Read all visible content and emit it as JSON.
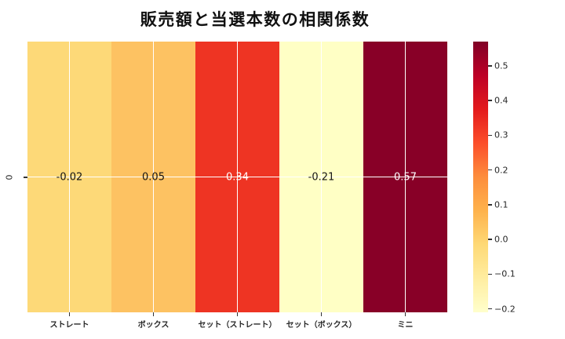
{
  "chart_data": {
    "type": "heatmap",
    "title": "販売額と当選本数の相関係数",
    "categories": [
      "ストレート",
      "ボックス",
      "セット（ストレート）",
      "セット（ボックス）",
      "ミニ"
    ],
    "row_labels": [
      "0"
    ],
    "values": [
      [
        -0.02,
        0.05,
        0.34,
        -0.21,
        0.57
      ]
    ],
    "value_labels": [
      [
        "-0.02",
        "0.05",
        "0.34",
        "-0.21",
        "0.57"
      ]
    ],
    "cell_colors": [
      [
        "#fdd978",
        "#fdc262",
        "#ee3423",
        "#ffffc5",
        "#880027"
      ]
    ],
    "cell_text_colors": [
      [
        "#141414",
        "#141414",
        "#ffffff",
        "#141414",
        "#ffffff"
      ]
    ],
    "colormap": "YlOrRd",
    "vmin": -0.21,
    "vmax": 0.57,
    "grid": true,
    "gridline_color": "#ffffff",
    "colorbar": {
      "ticks": [
        0.5,
        0.4,
        0.3,
        0.2,
        0.1,
        0.0,
        -0.1,
        -0.2
      ],
      "tick_labels": [
        "0.5",
        "0.4",
        "0.3",
        "0.2",
        "0.1",
        "0.0",
        "−0.1",
        "−0.2"
      ],
      "gradient_stops": [
        "#ffffcc",
        "#ffeda0",
        "#fed976",
        "#feb24c",
        "#fd8d3c",
        "#fc4e2a",
        "#e31a1c",
        "#bd0026",
        "#800026"
      ],
      "position": "right"
    }
  }
}
